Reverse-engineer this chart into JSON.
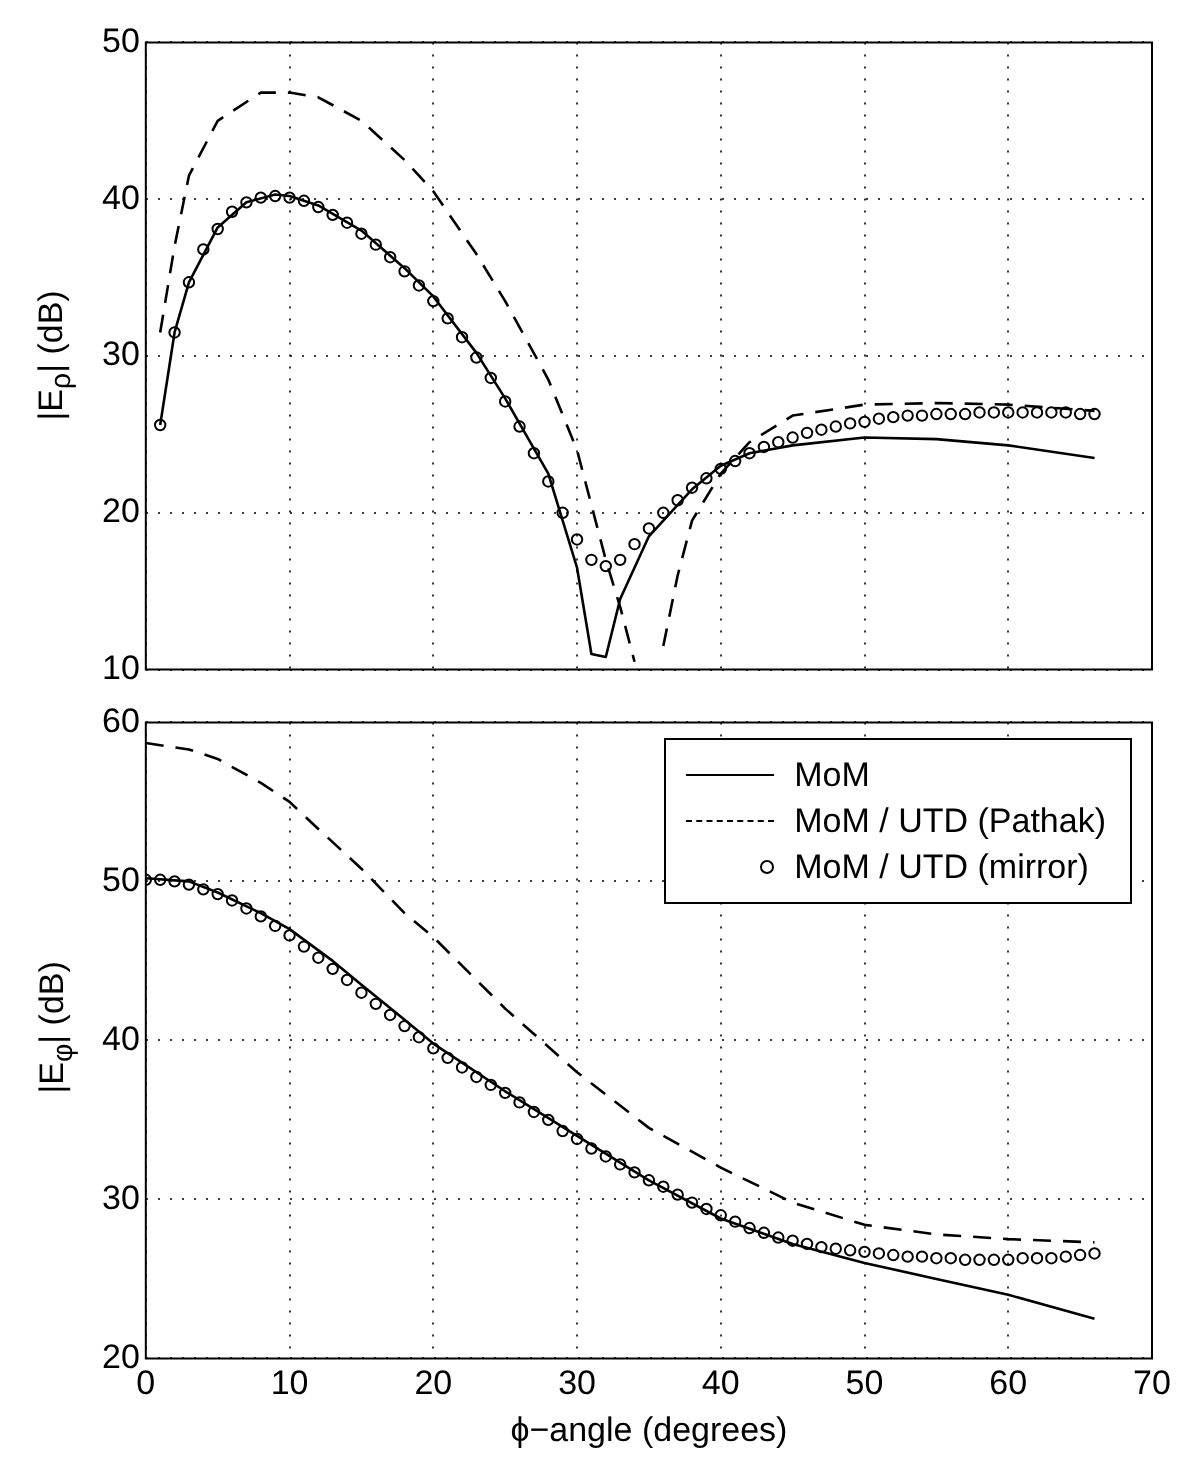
{
  "chart_data": [
    {
      "type": "line",
      "ylabel": "|E$_{ρ}$| (dB)",
      "xlim": [
        0,
        70
      ],
      "xticks": [
        0,
        10,
        20,
        30,
        40,
        50,
        60,
        70
      ],
      "ylim": [
        10,
        50
      ],
      "yticks": [
        10,
        20,
        30,
        40,
        50
      ],
      "grid": true,
      "legend": false,
      "tick_labels": "y",
      "series": [
        {
          "type": "line",
          "line_style": "solid",
          "marker": "none",
          "color": "#000000",
          "x": [
            1,
            2,
            3,
            5,
            7,
            9,
            10,
            12,
            15,
            18,
            20,
            23,
            25,
            28,
            30,
            31,
            32,
            33,
            35,
            38,
            40,
            42,
            45,
            50,
            55,
            60,
            66
          ],
          "values": [
            25.6,
            31.5,
            34.7,
            38.2,
            39.8,
            40.3,
            40.2,
            39.6,
            38.0,
            35.6,
            33.8,
            30.2,
            27.3,
            22.5,
            16.5,
            11.0,
            10.8,
            14.5,
            18.5,
            21.5,
            23.0,
            23.8,
            24.3,
            24.8,
            24.7,
            24.3,
            23.5
          ]
        },
        {
          "type": "line",
          "line_style": "dashed",
          "marker": "none",
          "color": "#000000",
          "x": [
            1,
            2,
            3,
            5,
            8,
            10,
            12,
            15,
            18,
            20,
            23,
            25,
            28,
            30,
            32,
            33,
            34,
            35,
            36,
            37,
            38,
            40,
            42,
            45,
            50,
            55,
            60,
            66
          ],
          "values": [
            31.5,
            37.0,
            41.5,
            45.0,
            46.8,
            46.8,
            46.5,
            45.0,
            42.5,
            40.5,
            36.5,
            33.5,
            28.5,
            24.0,
            17.0,
            14.0,
            10.5,
            null,
            11.5,
            16.0,
            19.5,
            22.5,
            24.5,
            26.2,
            26.9,
            27.0,
            26.9,
            26.5
          ]
        },
        {
          "type": "scatter",
          "marker": "circle",
          "color": "#000000",
          "x": [
            1,
            2,
            3,
            4,
            5,
            6,
            7,
            8,
            9,
            10,
            11,
            12,
            13,
            14,
            15,
            16,
            17,
            18,
            19,
            20,
            21,
            22,
            23,
            24,
            25,
            26,
            27,
            28,
            29,
            30,
            31,
            32,
            33,
            34,
            35,
            36,
            37,
            38,
            39,
            40,
            41,
            42,
            43,
            44,
            45,
            46,
            47,
            48,
            49,
            50,
            51,
            52,
            53,
            54,
            55,
            56,
            57,
            58,
            59,
            60,
            61,
            62,
            63,
            64,
            65,
            66
          ],
          "values": [
            25.6,
            31.5,
            34.7,
            36.8,
            38.1,
            39.2,
            39.8,
            40.1,
            40.2,
            40.1,
            39.9,
            39.5,
            39.0,
            38.5,
            37.8,
            37.1,
            36.3,
            35.4,
            34.5,
            33.5,
            32.4,
            31.2,
            29.9,
            28.6,
            27.1,
            25.5,
            23.8,
            22.0,
            20.0,
            18.3,
            17.0,
            16.6,
            17.0,
            18.0,
            19.0,
            20.0,
            20.8,
            21.6,
            22.2,
            22.8,
            23.3,
            23.8,
            24.2,
            24.5,
            24.8,
            25.1,
            25.3,
            25.5,
            25.7,
            25.8,
            26.0,
            26.1,
            26.2,
            26.2,
            26.3,
            26.3,
            26.3,
            26.4,
            26.4,
            26.4,
            26.4,
            26.4,
            26.4,
            26.4,
            26.3,
            26.3
          ]
        }
      ]
    },
    {
      "type": "line",
      "xlabel": "ϕ−angle (degrees)",
      "ylabel": "|E$_{φ}$| (dB)",
      "xlim": [
        0,
        70
      ],
      "xticks": [
        0,
        10,
        20,
        30,
        40,
        50,
        60,
        70
      ],
      "ylim": [
        20,
        60
      ],
      "yticks": [
        20,
        30,
        40,
        50,
        60
      ],
      "grid": true,
      "legend": "top right",
      "series": [
        {
          "name": "MoM",
          "type": "line",
          "line_style": "solid",
          "marker": "none",
          "color": "#000000",
          "x": [
            0,
            3,
            5,
            8,
            10,
            13,
            15,
            18,
            20,
            25,
            30,
            35,
            40,
            45,
            50,
            55,
            60,
            66
          ],
          "values": [
            50.2,
            50.0,
            49.3,
            48.0,
            47.0,
            45.0,
            43.5,
            41.3,
            39.8,
            36.8,
            34.0,
            31.2,
            28.8,
            27.2,
            26.0,
            25.0,
            24.0,
            22.5
          ]
        },
        {
          "name": "MoM / UTD (Pathak)",
          "type": "line",
          "line_style": "dashed",
          "marker": "none",
          "color": "#000000",
          "x": [
            0,
            3,
            5,
            8,
            10,
            12,
            15,
            18,
            20,
            25,
            30,
            35,
            40,
            45,
            50,
            55,
            60,
            66
          ],
          "values": [
            58.7,
            58.3,
            57.7,
            56.2,
            55.0,
            53.3,
            50.8,
            48.0,
            46.5,
            42.0,
            38.0,
            34.5,
            32.0,
            29.8,
            28.4,
            27.8,
            27.5,
            27.3
          ]
        },
        {
          "name": "MoM / UTD (mirror)",
          "type": "scatter",
          "marker": "circle",
          "color": "#000000",
          "x": [
            0,
            1,
            2,
            3,
            4,
            5,
            6,
            7,
            8,
            9,
            10,
            11,
            12,
            13,
            14,
            15,
            16,
            17,
            18,
            19,
            20,
            21,
            22,
            23,
            24,
            25,
            26,
            27,
            28,
            29,
            30,
            31,
            32,
            33,
            34,
            35,
            36,
            37,
            38,
            39,
            40,
            41,
            42,
            43,
            44,
            45,
            46,
            47,
            48,
            49,
            50,
            51,
            52,
            53,
            54,
            55,
            56,
            57,
            58,
            59,
            60,
            61,
            62,
            63,
            64,
            65,
            66
          ],
          "values": [
            50.1,
            50.1,
            50.0,
            49.8,
            49.5,
            49.2,
            48.8,
            48.3,
            47.8,
            47.2,
            46.6,
            45.9,
            45.2,
            44.5,
            43.8,
            43.0,
            42.3,
            41.6,
            40.9,
            40.2,
            39.5,
            38.9,
            38.3,
            37.7,
            37.2,
            36.7,
            36.1,
            35.5,
            35.0,
            34.3,
            33.8,
            33.2,
            32.7,
            32.2,
            31.7,
            31.2,
            30.8,
            30.3,
            29.8,
            29.4,
            29.0,
            28.6,
            28.2,
            27.9,
            27.6,
            27.4,
            27.2,
            27.0,
            26.9,
            26.8,
            26.7,
            26.6,
            26.5,
            26.4,
            26.4,
            26.3,
            26.3,
            26.2,
            26.2,
            26.2,
            26.2,
            26.3,
            26.3,
            26.3,
            26.4,
            26.5,
            26.6
          ]
        }
      ]
    }
  ]
}
